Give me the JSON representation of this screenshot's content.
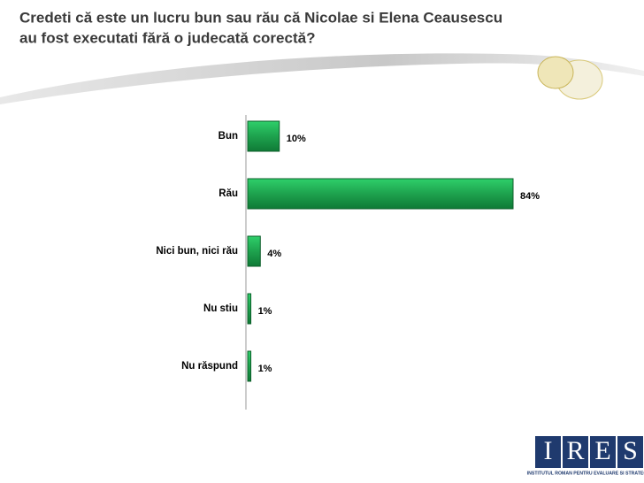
{
  "chart_data": {
    "type": "hbar",
    "title": [
      "Credeti că este un lucru bun sau rău că Nicolae si Elena Ceausescu",
      "au fost executati fără o judecată corectă?"
    ],
    "categories": [
      "Bun",
      "Rău",
      "Nici bun, nici rău",
      "Nu stiu",
      "Nu răspund"
    ],
    "values": [
      10,
      84,
      4,
      1,
      1
    ],
    "value_labels": [
      "10%",
      "84%",
      "4%",
      "1%",
      "1%"
    ],
    "color": "#1ea24e"
  },
  "logo": {
    "letters": [
      "I",
      "R",
      "E",
      "S"
    ],
    "subtitle": "INSTITUTUL ROMAN PENTRU EVALUARE SI STRATEGIE"
  }
}
